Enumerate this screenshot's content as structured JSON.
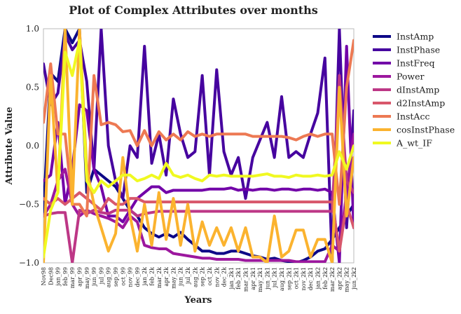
{
  "chart_data": {
    "type": "line",
    "title": "Plot of Complex Attributes over months",
    "xlabel": "Years",
    "ylabel": "Attribute Value",
    "ylim": [
      -1.0,
      1.0
    ],
    "yticks": [
      "1.0",
      "0.5",
      "0.0",
      "−0.5",
      "−1.0"
    ],
    "ytick_values": [
      1.0,
      0.5,
      0.0,
      -0.5,
      -1.0
    ],
    "grid": false,
    "legend_placement": "outside-right",
    "x": [
      "Nov98",
      "Dec98",
      "jan_99",
      "feb_99",
      "mar_99",
      "apr_99",
      "may_99",
      "jun_99",
      "jul_99",
      "aug_99",
      "sep_99",
      "oct_99",
      "nov_99",
      "dec_99",
      "jan_2k",
      "feb_2k",
      "mar_2k",
      "apr_2k",
      "may_2k",
      "jun_2k",
      "jul_2k",
      "aug_2k",
      "sep_2k",
      "oct_2k",
      "nov_2k",
      "dec_2k",
      "jan_2k1",
      "feb_2k1",
      "mar_2k1",
      "apr_2k1",
      "may_2k1",
      "jun_2k1",
      "jul_2k1",
      "aug_2k1",
      "sep_2k1",
      "oct_2k1",
      "nov_2k1",
      "dec_2k1",
      "jan_2k2",
      "feb_2k2",
      "mar_2k2",
      "apr_2k2",
      "may_2k2",
      "jun_2k2"
    ],
    "series": [
      {
        "name": "InstAmp",
        "color": "#0d0887",
        "values": [
          -0.58,
          0.62,
          0.55,
          1.0,
          0.88,
          1.0,
          -0.4,
          -0.2,
          -0.25,
          -0.3,
          -0.35,
          -0.45,
          -0.55,
          -0.6,
          -0.7,
          -0.75,
          -0.78,
          -0.75,
          -0.78,
          -0.74,
          -0.8,
          -0.85,
          -0.9,
          -0.9,
          -0.92,
          -0.92,
          -0.9,
          -0.9,
          -0.92,
          -0.94,
          -0.95,
          -0.97,
          -0.96,
          -0.98,
          -0.99,
          -1.0,
          -0.98,
          -0.95,
          -0.9,
          -0.88,
          -0.8,
          -0.7,
          -0.6,
          -0.5
        ]
      },
      {
        "name": "InstPhase",
        "color": "#46039f",
        "values": [
          0.7,
          0.35,
          0.45,
          0.95,
          0.82,
          0.9,
          0.55,
          -0.2,
          1.0,
          0.0,
          -0.3,
          -0.45,
          0.0,
          -0.1,
          0.85,
          -0.15,
          0.1,
          -0.25,
          0.4,
          0.1,
          -0.1,
          -0.05,
          0.6,
          -0.25,
          0.65,
          -0.05,
          -0.25,
          -0.1,
          -0.45,
          -0.1,
          0.05,
          0.2,
          -0.1,
          0.42,
          -0.1,
          -0.05,
          -0.1,
          0.1,
          0.28,
          0.75,
          -1.0,
          1.0,
          -0.7,
          0.3
        ]
      },
      {
        "name": "InstFreq",
        "color": "#7201a8",
        "values": [
          -0.3,
          -0.25,
          0.2,
          -0.5,
          -0.2,
          0.35,
          0.3,
          -0.2,
          -0.35,
          -0.6,
          -0.6,
          -0.65,
          -0.55,
          -0.45,
          -0.4,
          -0.35,
          -0.35,
          -0.4,
          -0.38,
          -0.38,
          -0.38,
          -0.38,
          -0.38,
          -0.37,
          -0.37,
          -0.37,
          -0.36,
          -0.38,
          -0.37,
          -0.38,
          -0.37,
          -0.37,
          -0.38,
          -0.37,
          -0.37,
          -0.38,
          -0.37,
          -0.37,
          -0.38,
          -0.37,
          -0.4,
          -1.0,
          0.85,
          -0.7
        ]
      },
      {
        "name": "Power",
        "color": "#9c179e",
        "values": [
          -0.6,
          -0.5,
          -0.3,
          -0.2,
          -0.5,
          -0.6,
          -0.55,
          -0.58,
          -0.6,
          -0.62,
          -0.65,
          -0.7,
          -0.6,
          -0.65,
          -0.85,
          -0.87,
          -0.88,
          -0.88,
          -0.92,
          -0.93,
          -0.94,
          -0.95,
          -0.96,
          -0.96,
          -0.97,
          -0.97,
          -0.97,
          -0.97,
          -0.98,
          -0.98,
          -0.98,
          -0.98,
          -0.98,
          -0.98,
          -0.98,
          -0.99,
          -0.99,
          -0.99,
          -0.99,
          -0.99,
          -0.85,
          -0.9,
          -0.4,
          0.1
        ]
      },
      {
        "name": "dInstAmp",
        "color": "#bd3786",
        "values": [
          -0.6,
          -0.58,
          -0.57,
          -0.57,
          -1.0,
          -0.55,
          -0.58,
          -0.55,
          -0.57,
          -0.58,
          -0.55,
          -0.55,
          -0.55,
          -0.6,
          -0.58,
          -0.57,
          -0.56,
          -0.56,
          -0.56,
          -0.56,
          -0.56,
          -0.56,
          -0.56,
          -0.56,
          -0.56,
          -0.56,
          -0.56,
          -0.56,
          -0.56,
          -0.56,
          -0.56,
          -0.56,
          -0.56,
          -0.56,
          -0.56,
          -0.56,
          -0.56,
          -0.56,
          -0.56,
          -0.56,
          -0.56,
          0.6,
          -0.3,
          -0.4
        ]
      },
      {
        "name": "d2InstAmp",
        "color": "#d8576b",
        "values": [
          -0.45,
          -0.5,
          -0.45,
          -0.5,
          -0.45,
          -0.4,
          -0.45,
          -0.5,
          -0.55,
          -0.45,
          -0.5,
          -0.5,
          -0.45,
          -0.45,
          -0.48,
          -0.48,
          -0.48,
          -0.48,
          -0.48,
          -0.48,
          -0.48,
          -0.48,
          -0.48,
          -0.48,
          -0.48,
          -0.48,
          -0.48,
          -0.48,
          -0.48,
          -0.48,
          -0.48,
          -0.48,
          -0.48,
          -0.48,
          -0.48,
          -0.48,
          -0.48,
          -0.48,
          -0.48,
          -0.48,
          -0.48,
          -0.9,
          -0.5,
          -0.7
        ]
      },
      {
        "name": "InstAcc",
        "color": "#ed7953",
        "values": [
          0.2,
          0.7,
          0.1,
          0.1,
          -0.5,
          -0.5,
          -0.6,
          0.6,
          0.18,
          0.2,
          0.18,
          0.12,
          0.13,
          0.0,
          0.13,
          0.0,
          0.12,
          0.05,
          0.1,
          0.05,
          0.12,
          0.08,
          0.1,
          0.08,
          0.1,
          0.1,
          0.1,
          0.1,
          0.1,
          0.08,
          0.08,
          0.08,
          0.08,
          0.08,
          0.07,
          0.05,
          0.08,
          0.1,
          0.08,
          0.1,
          0.1,
          -0.5,
          0.5,
          0.9
        ]
      },
      {
        "name": "cosInstPhase",
        "color": "#fbb32f",
        "values": [
          -1.0,
          0.6,
          -0.4,
          1.0,
          -0.5,
          1.0,
          -0.2,
          -0.5,
          -0.7,
          -0.9,
          -0.75,
          -0.1,
          -0.6,
          -0.9,
          -0.5,
          -0.85,
          -0.4,
          -0.8,
          -0.45,
          -0.85,
          -0.5,
          -0.9,
          -0.65,
          -0.85,
          -0.7,
          -0.85,
          -0.7,
          -0.9,
          -0.7,
          -0.95,
          -0.95,
          -1.0,
          -0.6,
          -0.95,
          -0.9,
          -0.72,
          -0.72,
          -0.95,
          -0.8,
          -0.8,
          -1.0,
          0.5,
          -0.6,
          -0.1
        ]
      },
      {
        "name": "A_wt_IF",
        "color": "#f0f921",
        "values": [
          -0.95,
          -0.55,
          -0.4,
          0.8,
          0.6,
          0.9,
          -0.3,
          -0.4,
          -0.3,
          -0.35,
          -0.3,
          -0.25,
          -0.25,
          -0.3,
          -0.28,
          -0.25,
          -0.28,
          -0.15,
          -0.25,
          -0.27,
          -0.25,
          -0.28,
          -0.3,
          -0.25,
          -0.26,
          -0.25,
          -0.26,
          -0.26,
          -0.26,
          -0.26,
          -0.25,
          -0.24,
          -0.26,
          -0.26,
          -0.27,
          -0.25,
          -0.26,
          -0.26,
          -0.25,
          -0.26,
          -0.25,
          -0.05,
          -0.2,
          0.0
        ]
      }
    ]
  }
}
